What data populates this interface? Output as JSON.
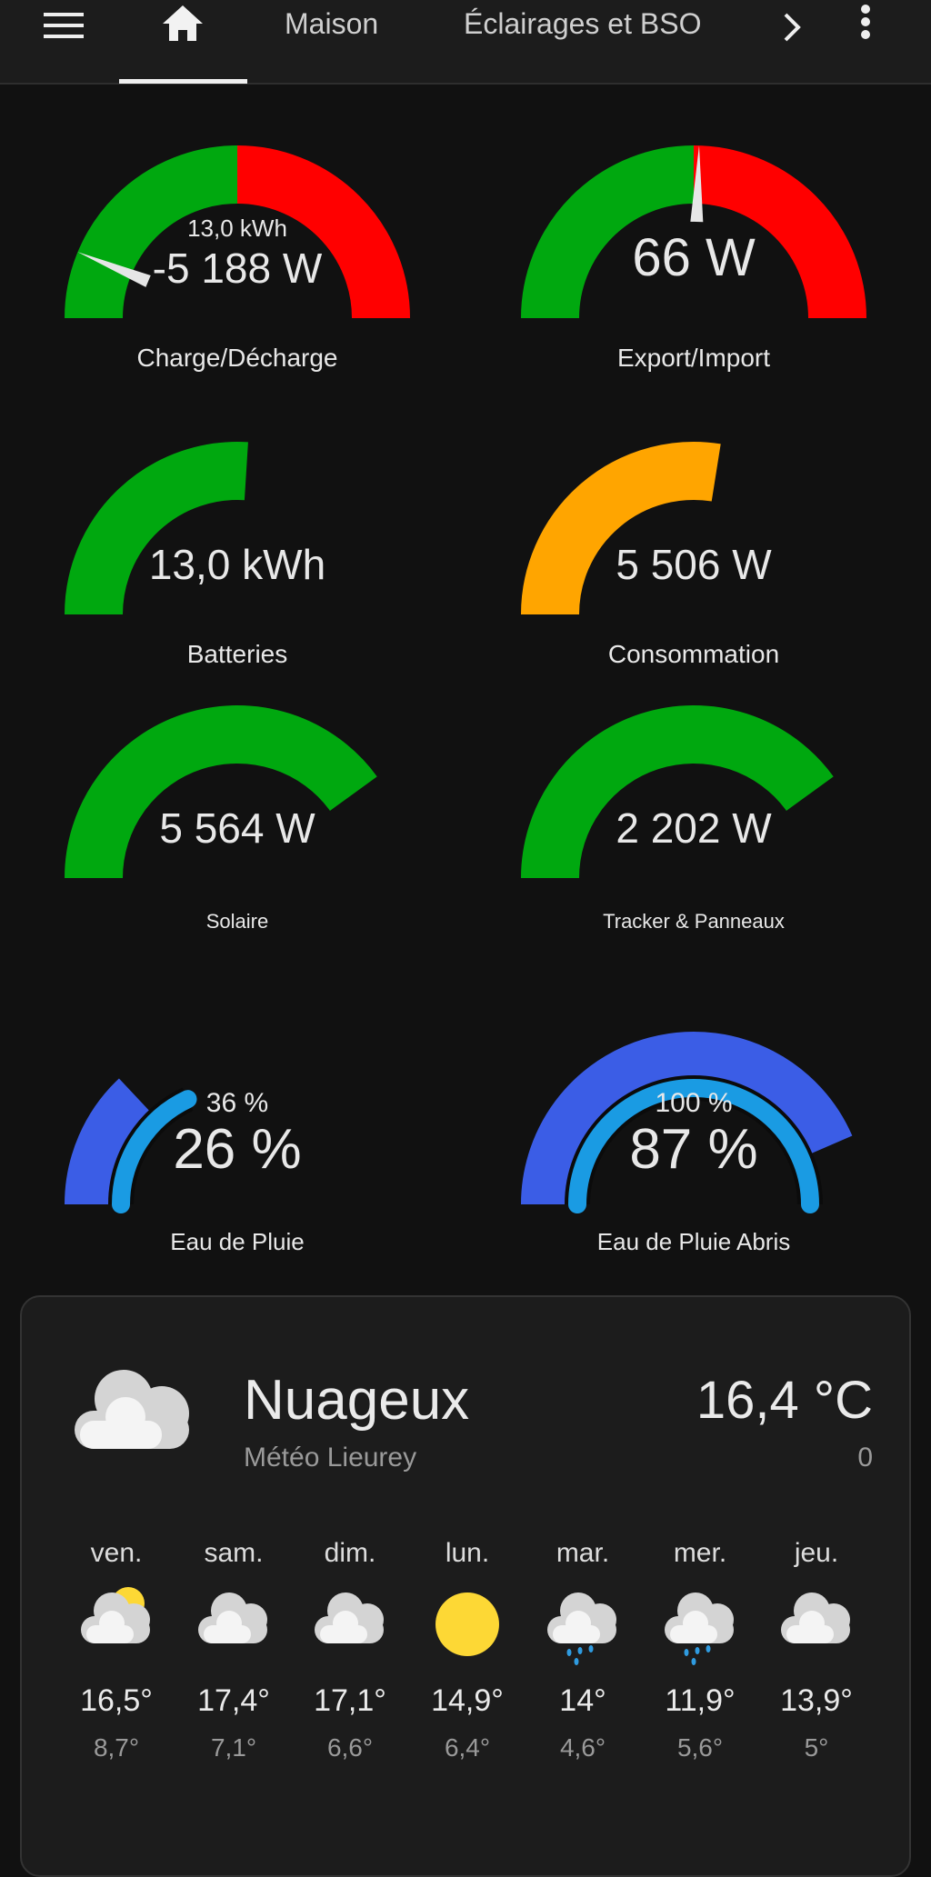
{
  "header": {
    "tabs": [
      {
        "label": "Maison"
      },
      {
        "label": "Éclairages et BSO"
      }
    ],
    "active_tab": "home",
    "icons": [
      "menu-icon",
      "home-icon",
      "chevron-right-icon",
      "more-vertical-icon"
    ]
  },
  "colors": {
    "green": "#00a80f",
    "red": "#ff0000",
    "orange": "#ffa500",
    "blue": "#3b5de6",
    "light_blue": "#1a9be3"
  },
  "gauges": [
    {
      "type": "split",
      "label": "Charge/Décharge",
      "value": "-5 188 W",
      "secondary": "13,0 kWh",
      "needle_fraction": 0.125
    },
    {
      "type": "split",
      "label": "Export/Import",
      "value": "66 W",
      "needle_fraction": 0.51
    },
    {
      "type": "fill",
      "label": "Batteries",
      "value": "13,0 kWh",
      "fill_fraction": 0.52,
      "color": "#00a80f"
    },
    {
      "type": "fill",
      "label": "Consommation",
      "value": "5 506 W",
      "fill_fraction": 0.55,
      "color": "#ffa500"
    },
    {
      "type": "fill",
      "label": "Solaire",
      "value": "5 564 W",
      "fill_fraction": 0.8,
      "color": "#00a80f"
    },
    {
      "type": "fill",
      "label": "Tracker & Panneaux",
      "value": "2 202 W",
      "fill_fraction": 0.8,
      "color": "#00a80f"
    },
    {
      "type": "dual",
      "label": "Eau de Pluie",
      "value": "26 %",
      "secondary": "36 %",
      "outer_fraction": 0.26,
      "inner_fraction": 0.36
    },
    {
      "type": "dual",
      "label": "Eau de Pluie Abris",
      "value": "87 %",
      "secondary": "100 %",
      "outer_fraction": 0.87,
      "inner_fraction": 1.0
    }
  ],
  "weather": {
    "condition": "Nuageux",
    "location": "Météo Lieurey",
    "temperature": "16,4 °C",
    "secondary": "0",
    "icon": "cloudy-icon",
    "forecast": [
      {
        "day": "ven.",
        "icon": "partly-cloudy",
        "high": "16,5°",
        "low": "8,7°"
      },
      {
        "day": "sam.",
        "icon": "cloudy",
        "high": "17,4°",
        "low": "7,1°"
      },
      {
        "day": "dim.",
        "icon": "cloudy",
        "high": "17,1°",
        "low": "6,6°"
      },
      {
        "day": "lun.",
        "icon": "sunny",
        "high": "14,9°",
        "low": "6,4°"
      },
      {
        "day": "mar.",
        "icon": "rainy",
        "high": "14°",
        "low": "4,6°"
      },
      {
        "day": "mer.",
        "icon": "rainy",
        "high": "11,9°",
        "low": "5,6°"
      },
      {
        "day": "jeu.",
        "icon": "cloudy",
        "high": "13,9°",
        "low": "5°"
      }
    ]
  }
}
